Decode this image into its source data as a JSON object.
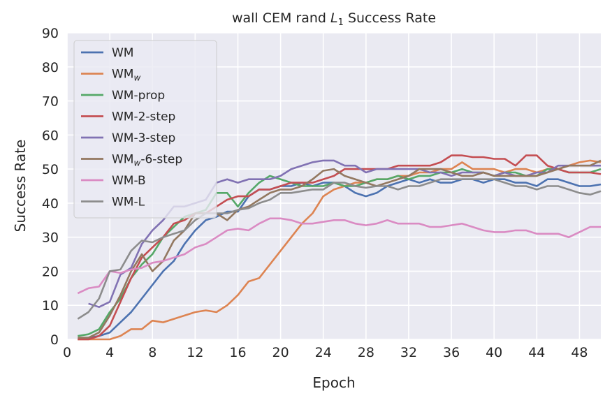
{
  "chart_data": {
    "type": "line",
    "title": {
      "prefix": "wall CEM rand ",
      "math": "L",
      "math_sub": "1",
      "suffix": " Success Rate"
    },
    "xlabel": "Epoch",
    "ylabel": "Success Rate",
    "xlim": [
      0,
      50
    ],
    "ylim": [
      0,
      90
    ],
    "xticks": [
      0,
      4,
      8,
      12,
      16,
      20,
      24,
      28,
      32,
      36,
      40,
      44,
      48
    ],
    "yticks": [
      0,
      10,
      20,
      30,
      40,
      50,
      60,
      70,
      80,
      90
    ],
    "grid": true,
    "background": "#eaeaf2",
    "legend_position": "top-left",
    "x": [
      1,
      2,
      3,
      4,
      5,
      6,
      7,
      8,
      9,
      10,
      11,
      12,
      13,
      14,
      15,
      16,
      17,
      18,
      19,
      20,
      21,
      22,
      23,
      24,
      25,
      26,
      27,
      28,
      29,
      30,
      31,
      32,
      33,
      34,
      35,
      36,
      37,
      38,
      39,
      40,
      41,
      42,
      43,
      44,
      45,
      46,
      47,
      48,
      49,
      50
    ],
    "series": [
      {
        "name": "WM",
        "sub": "",
        "suffix": "",
        "color": "#4c72b0",
        "values": [
          0,
          0.5,
          1,
          2,
          5,
          8,
          12,
          16,
          20,
          23,
          28,
          32,
          35,
          36,
          37.5,
          37.5,
          42,
          44,
          44,
          45,
          45,
          46,
          45,
          46,
          46,
          45,
          43,
          42,
          43,
          45,
          46,
          47,
          46,
          47,
          46,
          46,
          47,
          47,
          46,
          47,
          47,
          46,
          46,
          45,
          47,
          47,
          46,
          45,
          45,
          45.5
        ]
      },
      {
        "name": "WM",
        "sub": "w",
        "suffix": "",
        "color": "#dd8452",
        "values": [
          0,
          0,
          0,
          0,
          1,
          3,
          3,
          5.5,
          5,
          6,
          7,
          8,
          8.5,
          8,
          10,
          13,
          17,
          18,
          22,
          26,
          30,
          34,
          37,
          42,
          44,
          45,
          46,
          46,
          47,
          47,
          48,
          48,
          49,
          49,
          50,
          50,
          52,
          50,
          50,
          50,
          49,
          50,
          50,
          49,
          50,
          50,
          51,
          52,
          52.5,
          52
        ]
      },
      {
        "name": "WM-prop",
        "sub": "",
        "suffix": "",
        "color": "#55a868",
        "values": [
          1,
          1.5,
          3,
          8,
          12,
          18,
          22,
          25,
          30,
          33,
          36,
          37,
          38,
          43,
          43,
          39,
          43,
          46,
          48,
          47,
          46,
          45,
          45,
          45,
          46,
          45,
          45,
          46,
          47,
          47,
          48,
          47,
          48,
          48,
          49,
          49,
          50,
          49,
          49,
          48,
          49,
          49,
          48,
          48,
          50,
          50,
          49,
          49,
          49,
          50
        ]
      },
      {
        "name": "WM-2-step",
        "sub": "",
        "suffix": "",
        "color": "#c44e52",
        "values": [
          0,
          0,
          1,
          4,
          11,
          18,
          24,
          27,
          30,
          34,
          35,
          37,
          37,
          39,
          41,
          42,
          42,
          44,
          44,
          45,
          46,
          46,
          46,
          47,
          48,
          50,
          50,
          50,
          50,
          50,
          51,
          51,
          51,
          51,
          52,
          54,
          54,
          53.5,
          53.5,
          53,
          53,
          51,
          54,
          54,
          51,
          50,
          49,
          49,
          49,
          48.5
        ]
      },
      {
        "name": "WM-3-step",
        "sub": "",
        "suffix": "",
        "color": "#8172b3",
        "values": [
          null,
          10.5,
          9.5,
          11,
          19,
          21,
          28,
          32,
          35,
          39,
          39,
          40,
          41,
          46,
          47,
          46,
          47,
          47,
          47,
          48,
          50,
          51,
          52,
          52.5,
          52.5,
          51,
          51,
          49,
          50,
          50,
          50,
          50,
          50,
          49,
          49,
          48,
          49,
          49,
          49,
          48,
          49,
          48,
          48,
          49,
          49,
          51,
          51,
          51,
          51,
          51
        ]
      },
      {
        "name": "WM",
        "sub": "w",
        "suffix": "-6-step",
        "color": "#937860",
        "values": [
          0.5,
          0.5,
          2,
          7,
          13,
          20,
          25,
          20,
          23,
          29,
          32,
          37,
          37,
          37,
          35,
          38,
          39,
          41,
          43,
          44,
          44,
          45,
          47,
          49.5,
          50,
          48,
          47,
          46,
          45,
          46,
          47,
          48,
          50,
          50,
          50,
          49,
          48,
          48,
          49,
          48,
          48,
          48,
          48,
          48,
          49,
          50,
          51,
          51,
          51,
          52.5
        ]
      },
      {
        "name": "WM-B",
        "sub": "",
        "suffix": "",
        "color": "#da8bc3",
        "values": [
          13.5,
          15,
          15.5,
          20,
          19.5,
          20.5,
          21,
          22.5,
          23,
          24,
          25,
          27,
          28,
          30,
          32,
          32.5,
          32,
          34,
          35.5,
          35.5,
          35,
          34,
          34,
          34.5,
          35,
          35,
          34,
          33.5,
          34,
          35,
          34,
          34,
          34,
          33,
          33,
          33.5,
          34,
          33,
          32,
          31.5,
          31.5,
          32,
          32,
          31,
          31,
          31,
          30,
          31.5,
          33,
          33
        ]
      },
      {
        "name": "WM-L",
        "sub": "",
        "suffix": "",
        "color": "#8c8c8c",
        "values": [
          6,
          8,
          12,
          20,
          20.5,
          26,
          29,
          28.5,
          30,
          31,
          32,
          35,
          37,
          37,
          37,
          38,
          38.5,
          40,
          41,
          43,
          43,
          43.5,
          44,
          44,
          46,
          46,
          45,
          44.5,
          45,
          45,
          44,
          45,
          45,
          46,
          47,
          47,
          47,
          47,
          47,
          47,
          46,
          45,
          45,
          44,
          45,
          45,
          44,
          43,
          42.5,
          43.5
        ]
      }
    ]
  }
}
